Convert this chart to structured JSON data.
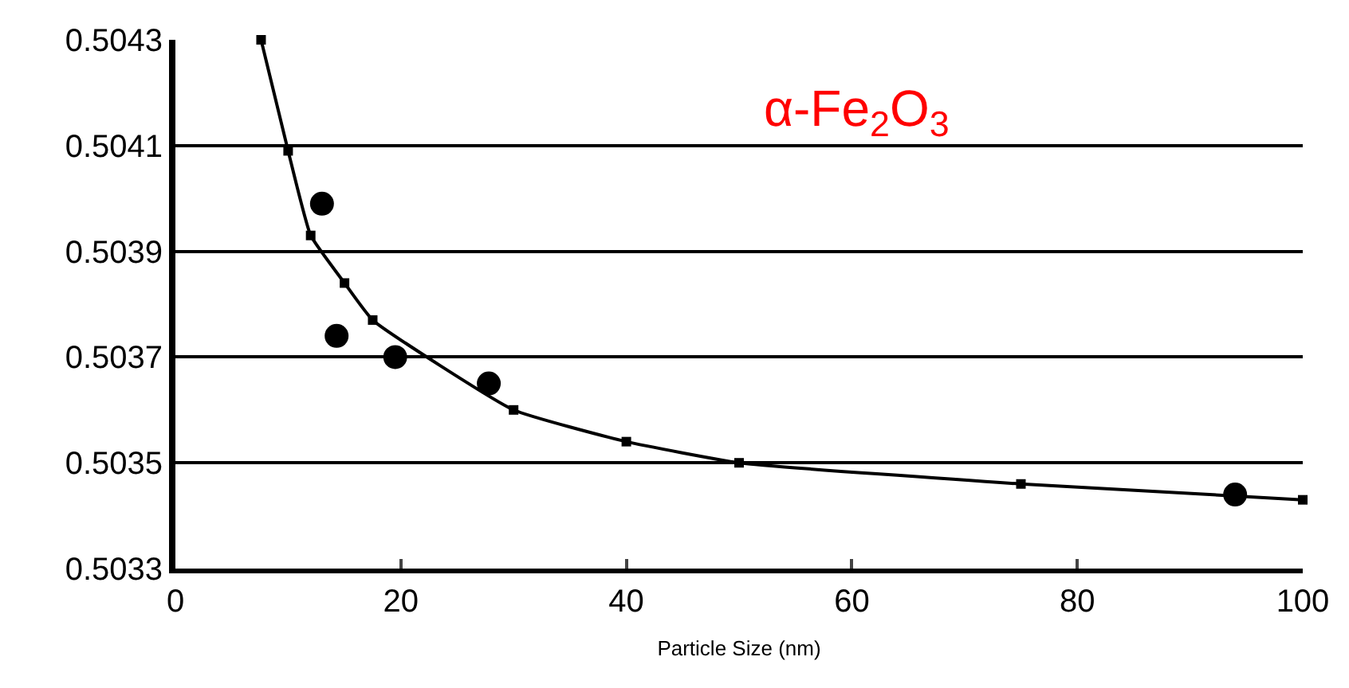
{
  "chart_data": {
    "type": "line",
    "xlabel": "Particle Size (nm)",
    "series": [
      {
        "color": "#000000",
        "marker": "square",
        "x": [
          7.6,
          10,
          12,
          15,
          17.5,
          30,
          40,
          50,
          75,
          100
        ],
        "values": [
          0.5043,
          0.50409,
          0.50393,
          0.50384,
          0.50377,
          0.5036,
          0.50354,
          0.5035,
          0.50346,
          0.50343
        ]
      },
      {
        "type": "scatter",
        "color": "#000000",
        "marker": "circle",
        "x": [
          13,
          14.3,
          19.5,
          27.8,
          94
        ],
        "values": [
          0.50399,
          0.50374,
          0.5037,
          0.50365,
          0.50344
        ]
      }
    ],
    "xlim": [
      0,
      100
    ],
    "xticks": [
      0,
      20,
      40,
      60,
      80,
      100
    ],
    "ylim": [
      0.5033,
      0.5043
    ],
    "yticks": [
      0.5033,
      0.5035,
      0.5037,
      0.5039,
      0.5041,
      0.5043
    ],
    "grid": "y",
    "annotations": [
      "α-Fe$_{2}$O$_{3}$"
    ]
  }
}
